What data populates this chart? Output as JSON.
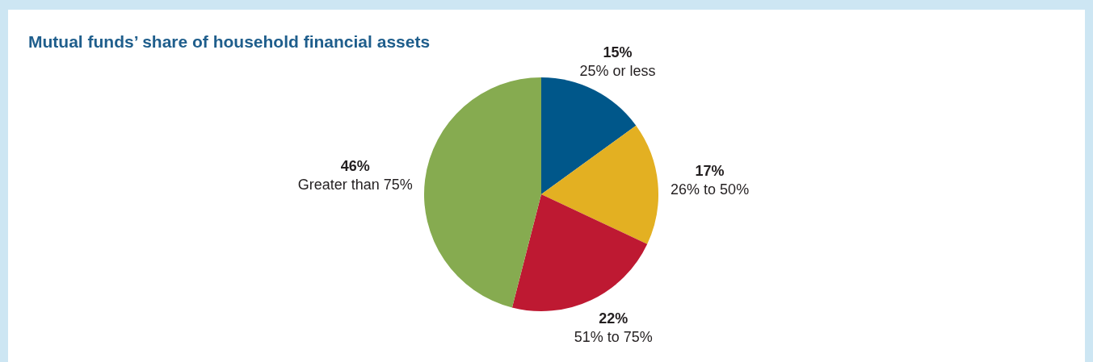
{
  "chart_data": {
    "type": "pie",
    "title": "Mutual funds’ share of household financial assets",
    "categories": [
      "25% or less",
      "26% to 50%",
      "51% to 75%",
      "Greater than 75%"
    ],
    "values": [
      15,
      17,
      22,
      46
    ],
    "value_labels": [
      "15%",
      "17%",
      "22%",
      "46%"
    ],
    "colors": [
      "#00578a",
      "#e3b022",
      "#be1932",
      "#86ab50"
    ],
    "legend": false
  }
}
